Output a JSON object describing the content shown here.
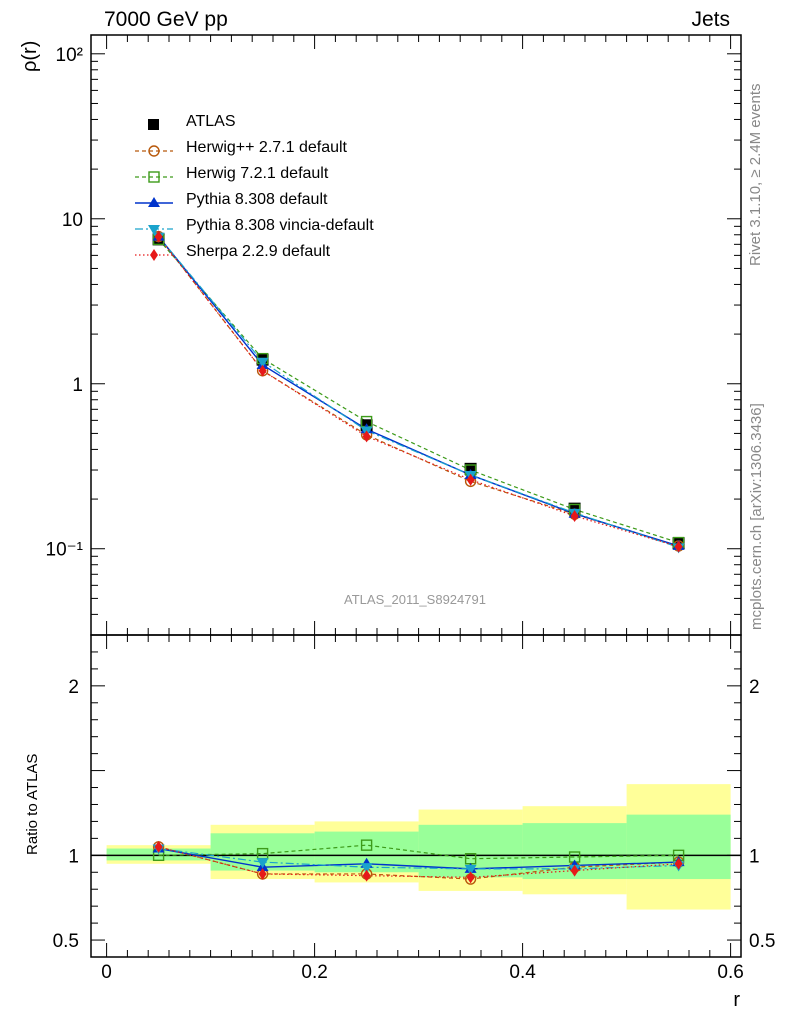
{
  "header": {
    "left": "7000 GeV pp",
    "right": "Jets"
  },
  "side": {
    "rivet": "Rivet 3.1.10, ≥ 2.4M events",
    "mcplots": "mcplots.cern.ch [arXiv:1306.3436]"
  },
  "watermark": "ATLAS_2011_S8924791",
  "colors": {
    "atlas": "#000000",
    "herwigpp": "#b8590c",
    "herwig7": "#3d9b1a",
    "pythia": "#0033cc",
    "vincia": "#1aa3cc",
    "sherpa": "#e61919",
    "band_yellow": "#ffff99",
    "band_green": "#99ff99"
  },
  "chart_data": [
    {
      "type": "line",
      "ylabel": "ρ(r)",
      "yscale": "log",
      "ylim": [
        0.03,
        130
      ],
      "xlim": [
        -0.015,
        0.61
      ],
      "ytick_labels": [
        "10⁻¹",
        "1",
        "10",
        "10²"
      ],
      "x": [
        0.05,
        0.15,
        0.25,
        0.35,
        0.45,
        0.55
      ],
      "series": [
        {
          "name": "ATLAS",
          "values": [
            7.5,
            1.4,
            0.56,
            0.305,
            0.175,
            0.108
          ]
        },
        {
          "name": "Herwig++ 2.7.1 default",
          "values": [
            7.8,
            1.2,
            0.49,
            0.256,
            0.162,
            0.104
          ]
        },
        {
          "name": "Herwig 7.2.1 default",
          "values": [
            7.5,
            1.42,
            0.59,
            0.3,
            0.173,
            0.109
          ]
        },
        {
          "name": "Pythia 8.308 default",
          "values": [
            7.8,
            1.3,
            0.53,
            0.28,
            0.163,
            0.104
          ]
        },
        {
          "name": "Pythia 8.308 vincia-default",
          "values": [
            7.8,
            1.36,
            0.52,
            0.28,
            0.165,
            0.102
          ]
        },
        {
          "name": "Sherpa 2.2.9 default",
          "values": [
            7.8,
            1.2,
            0.48,
            0.262,
            0.158,
            0.103
          ]
        }
      ],
      "legend": "top-left"
    },
    {
      "type": "line",
      "ylabel": "Ratio to ATLAS",
      "xlabel": "r",
      "ylim": [
        0.4,
        2.3
      ],
      "xlim": [
        -0.015,
        0.61
      ],
      "ytick_labels": [
        "0.5",
        "1",
        "2"
      ],
      "xtick_labels": [
        "0",
        "0.2",
        "0.4",
        "0.6"
      ],
      "x": [
        0.05,
        0.15,
        0.25,
        0.35,
        0.45,
        0.55
      ],
      "bands": {
        "bins": [
          [
            0.0,
            0.1
          ],
          [
            0.1,
            0.2
          ],
          [
            0.2,
            0.3
          ],
          [
            0.3,
            0.4
          ],
          [
            0.4,
            0.5
          ],
          [
            0.5,
            0.6
          ]
        ],
        "yellow": [
          [
            0.95,
            1.06
          ],
          [
            0.86,
            1.18
          ],
          [
            0.84,
            1.2
          ],
          [
            0.79,
            1.27
          ],
          [
            0.77,
            1.29
          ],
          [
            0.68,
            1.42
          ]
        ],
        "green": [
          [
            0.97,
            1.04
          ],
          [
            0.91,
            1.13
          ],
          [
            0.9,
            1.14
          ],
          [
            0.87,
            1.18
          ],
          [
            0.86,
            1.19
          ],
          [
            0.86,
            1.24
          ]
        ]
      },
      "series": [
        {
          "name": "Herwig++ 2.7.1 default",
          "values": [
            1.05,
            0.89,
            0.89,
            0.86,
            0.93,
            0.96
          ]
        },
        {
          "name": "Herwig 7.2.1 default",
          "values": [
            1.0,
            1.01,
            1.06,
            0.98,
            0.99,
            1.0
          ]
        },
        {
          "name": "Pythia 8.308 default",
          "values": [
            1.04,
            0.93,
            0.95,
            0.92,
            0.94,
            0.96
          ]
        },
        {
          "name": "Pythia 8.308 vincia-default",
          "values": [
            1.04,
            0.96,
            0.93,
            0.92,
            0.92,
            0.94
          ]
        },
        {
          "name": "Sherpa 2.2.9 default",
          "values": [
            1.05,
            0.89,
            0.88,
            0.87,
            0.91,
            0.95
          ]
        }
      ]
    }
  ]
}
